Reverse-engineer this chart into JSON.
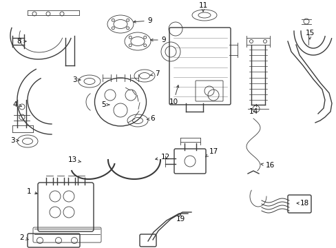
{
  "bg_color": "#ffffff",
  "line_color": "#3a3a3a",
  "text_color": "#000000",
  "fig_width": 4.89,
  "fig_height": 3.6,
  "dpi": 100
}
